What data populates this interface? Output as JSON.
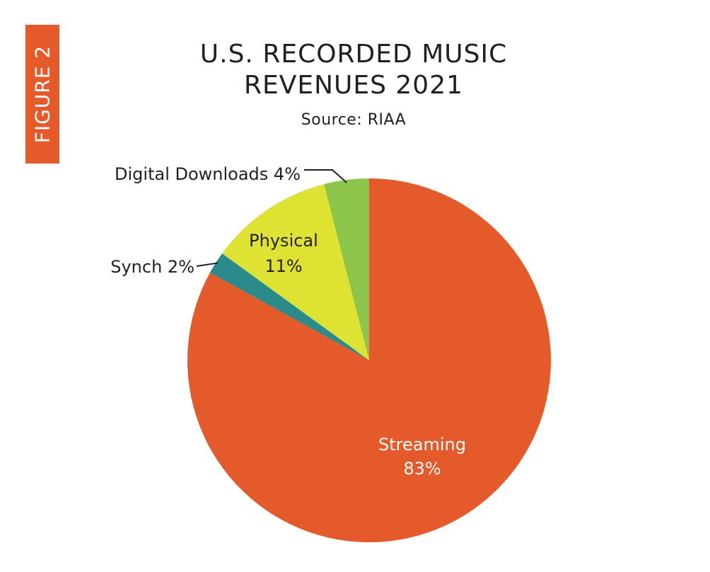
{
  "figure_tab": "FIGURE 2",
  "chart_data": {
    "type": "pie",
    "title_lines": [
      "U.S. RECORDED MUSIC",
      "REVENUES 2021"
    ],
    "subtitle": "Source: RIAA",
    "slices": [
      {
        "name": "Streaming",
        "value": 83,
        "value_label": "83%",
        "color": "#e45a2a",
        "label_position": "inside"
      },
      {
        "name": "Synch",
        "value": 2,
        "value_label": "Synch 2%",
        "color": "#2b8a8a",
        "label_position": "outside-left"
      },
      {
        "name": "Physical",
        "value": 11,
        "value_label": "11%",
        "color": "#dde233",
        "label_position": "inside"
      },
      {
        "name": "Digital Downloads",
        "value": 4,
        "value_label": "Digital Downloads 4%",
        "color": "#8dc54b",
        "label_position": "outside-top"
      }
    ],
    "slice_order": "clockwise from top"
  }
}
